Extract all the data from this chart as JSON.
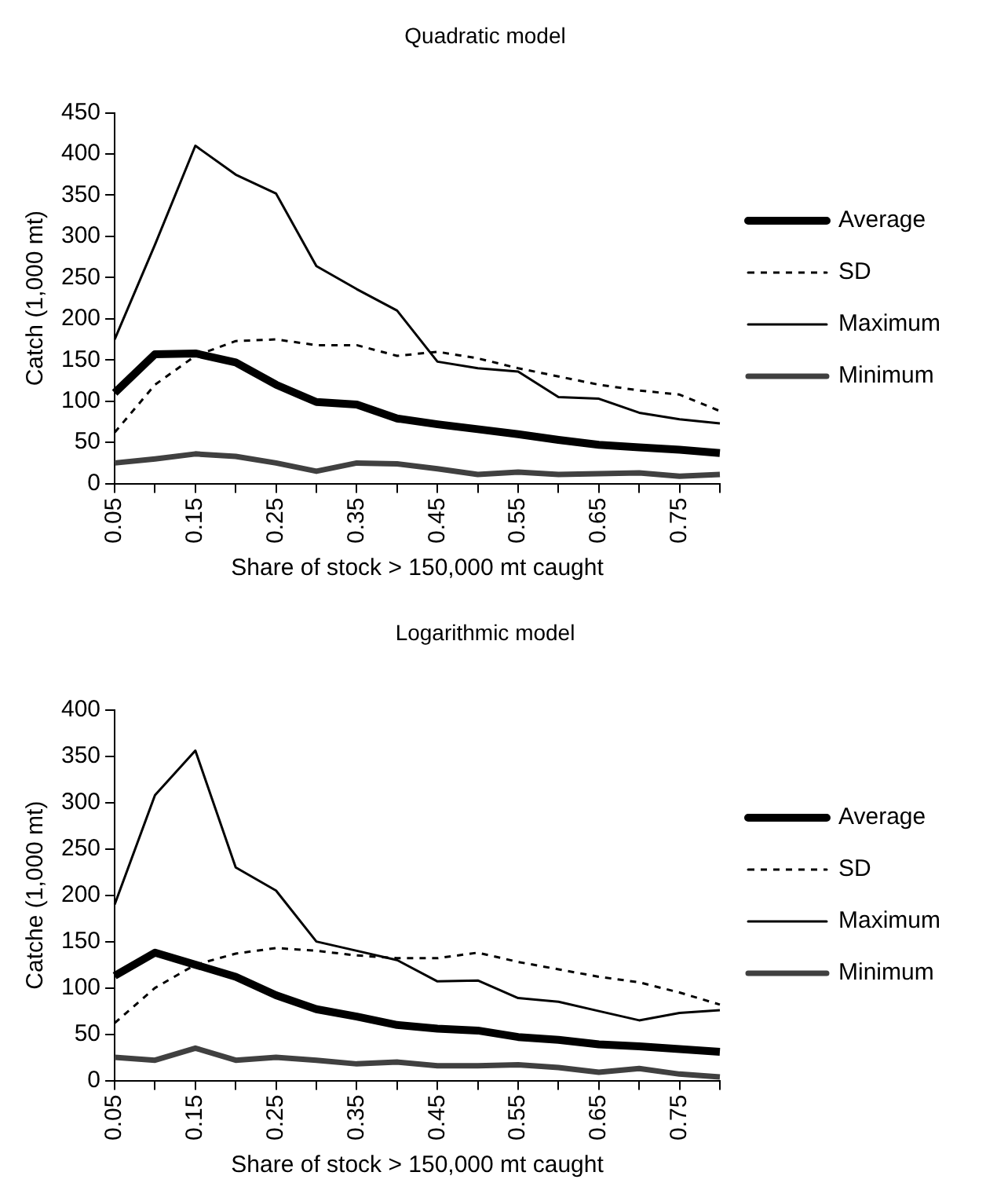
{
  "chart_data": [
    {
      "type": "line",
      "title": "Quadratic model",
      "xlabel": "Share of stock > 150,000 mt caught",
      "ylabel": "Catch (1,000 mt)",
      "categories": [
        "0.05",
        null,
        "0.15",
        null,
        "0.25",
        null,
        "0.35",
        null,
        "0.45",
        null,
        "0.55",
        null,
        "0.65",
        null,
        "0.75",
        null
      ],
      "series": [
        {
          "name": "Average",
          "color": "#000000",
          "values": [
            110,
            157,
            158,
            147,
            120,
            99,
            96,
            79,
            72,
            66,
            60,
            53,
            47,
            44,
            41,
            37
          ]
        },
        {
          "name": "SD",
          "color": "#000000",
          "line_style": "dashed",
          "values": [
            62,
            120,
            155,
            173,
            175,
            168,
            168,
            155,
            160,
            152,
            140,
            130,
            120,
            113,
            108,
            88
          ]
        },
        {
          "name": "Maximum",
          "color": "#000000",
          "values": [
            175,
            290,
            410,
            375,
            352,
            264,
            236,
            210,
            148,
            140,
            136,
            105,
            103,
            86,
            78,
            73
          ]
        },
        {
          "name": "Minimum",
          "color": "#404040",
          "values": [
            25,
            30,
            36,
            33,
            25,
            15,
            25,
            24,
            18,
            11,
            14,
            11,
            12,
            13,
            9,
            11
          ]
        }
      ],
      "ylim": [
        0,
        450
      ],
      "yticks": [
        0,
        50,
        100,
        150,
        200,
        250,
        300,
        350,
        400,
        450
      ],
      "grid": false,
      "legend": "right",
      "marker": "none"
    },
    {
      "type": "line",
      "title": "Logarithmic model",
      "xlabel": "Share of stock > 150,000 mt caught",
      "ylabel": "Catche (1,000 mt)",
      "categories": [
        "0.05",
        null,
        "0.15",
        null,
        "0.25",
        null,
        "0.35",
        null,
        "0.45",
        null,
        "0.55",
        null,
        "0.65",
        null,
        "0.75",
        null
      ],
      "series": [
        {
          "name": "Average",
          "color": "#000000",
          "values": [
            113,
            138,
            125,
            112,
            92,
            77,
            69,
            60,
            56,
            54,
            47,
            44,
            39,
            37,
            34,
            31
          ]
        },
        {
          "name": "SD",
          "color": "#000000",
          "line_style": "dashed",
          "values": [
            62,
            100,
            125,
            137,
            143,
            140,
            135,
            132,
            132,
            138,
            128,
            120,
            112,
            106,
            95,
            82
          ]
        },
        {
          "name": "Maximum",
          "color": "#000000",
          "values": [
            190,
            308,
            356,
            230,
            205,
            150,
            140,
            130,
            107,
            108,
            89,
            85,
            75,
            65,
            73,
            76
          ]
        },
        {
          "name": "Minimum",
          "color": "#404040",
          "values": [
            25,
            22,
            35,
            22,
            25,
            22,
            18,
            20,
            16,
            16,
            17,
            14,
            9,
            13,
            7,
            4
          ]
        }
      ],
      "ylim": [
        0,
        400
      ],
      "yticks": [
        0,
        50,
        100,
        150,
        200,
        250,
        300,
        350,
        400
      ],
      "grid": false,
      "legend": "right",
      "marker": "none"
    }
  ]
}
